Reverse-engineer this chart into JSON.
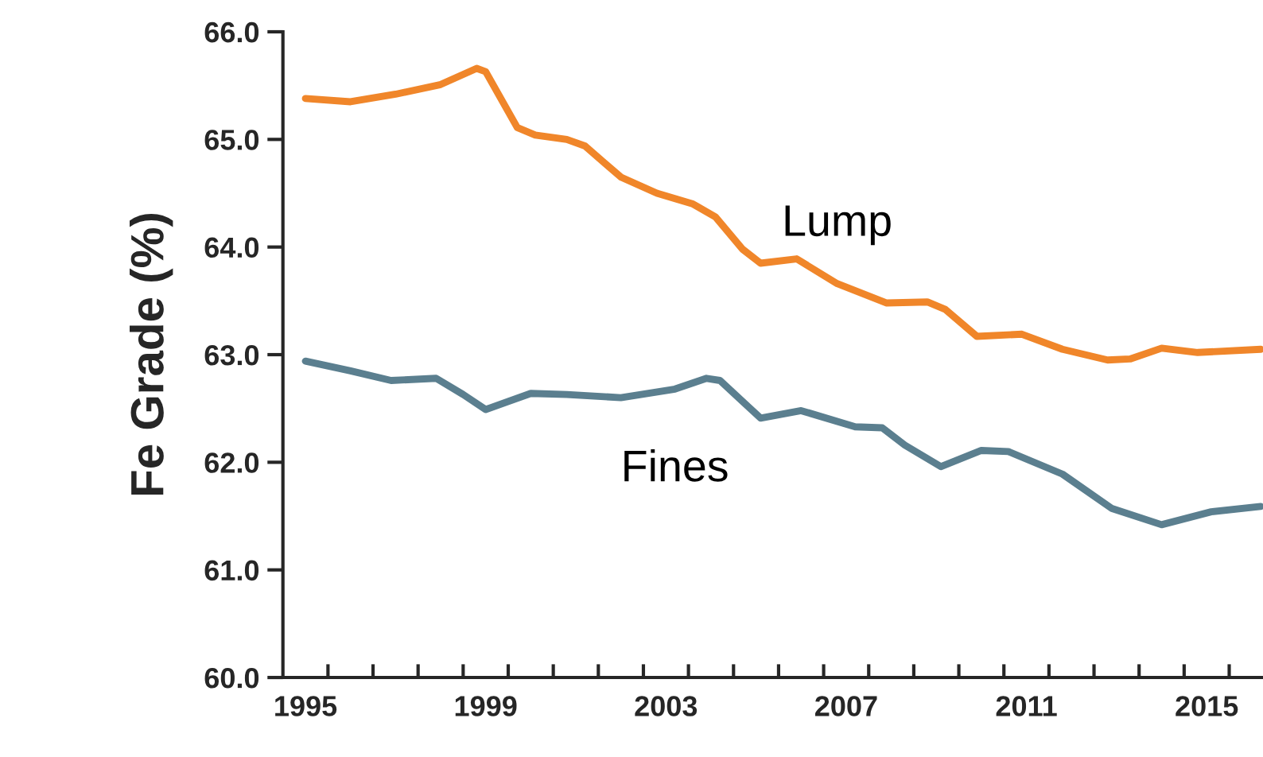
{
  "chart_data": {
    "type": "line",
    "ylabel": "Fe Grade (%)",
    "xlim": [
      1994.5,
      2016.25
    ],
    "ylim": [
      60,
      66
    ],
    "yticks": [
      {
        "value": 60,
        "label": "60.0"
      },
      {
        "value": 61,
        "label": "61.0"
      },
      {
        "value": 62,
        "label": "62.0"
      },
      {
        "value": 63,
        "label": "63.0"
      },
      {
        "value": 64,
        "label": "64.0"
      },
      {
        "value": 65,
        "label": "65.0"
      },
      {
        "value": 66,
        "label": "66.0"
      }
    ],
    "xticks": [
      1995,
      1999,
      2003,
      2007,
      2011,
      2015,
      {
        "value": 1995.5,
        "label": null
      },
      {
        "value": 1996.5,
        "label": null
      },
      {
        "value": 1997.5,
        "label": null
      },
      {
        "value": 1998.5,
        "label": null
      },
      {
        "value": 1999.5,
        "label": null
      },
      {
        "value": 2000.5,
        "label": null
      },
      {
        "value": 2001.5,
        "label": null
      },
      {
        "value": 2002.5,
        "label": null
      },
      {
        "value": 2003.5,
        "label": null
      },
      {
        "value": 2004.5,
        "label": null
      },
      {
        "value": 2005.5,
        "label": null
      },
      {
        "value": 2006.5,
        "label": null
      },
      {
        "value": 2007.5,
        "label": null
      },
      {
        "value": 2008.5,
        "label": null
      },
      {
        "value": 2009.5,
        "label": null
      },
      {
        "value": 2010.5,
        "label": null
      },
      {
        "value": 2011.5,
        "label": null
      },
      {
        "value": 2012.5,
        "label": null
      },
      {
        "value": 2013.5,
        "label": null
      },
      {
        "value": 2014.5,
        "label": null
      },
      {
        "value": 2015.5,
        "label": null
      }
    ],
    "grid": false,
    "legend": false,
    "series": [
      {
        "name": "Lump",
        "color": "#f0862a",
        "x": [
          1995.0,
          1996.0,
          1997.0,
          1998.0,
          1998.8,
          1999.0,
          1999.7,
          2000.1,
          2000.8,
          2001.2,
          2002.0,
          2002.8,
          2003.6,
          2004.1,
          2004.7,
          2005.1,
          2005.9,
          2006.8,
          2007.9,
          2008.8,
          2009.2,
          2009.9,
          2010.9,
          2011.8,
          2012.8,
          2013.3,
          2014.0,
          2014.8,
          2016.2
        ],
        "values": [
          65.38,
          65.35,
          65.42,
          65.51,
          65.66,
          65.63,
          65.11,
          65.04,
          65.0,
          64.94,
          64.65,
          64.5,
          64.4,
          64.28,
          63.98,
          63.85,
          63.89,
          63.66,
          63.48,
          63.49,
          63.42,
          63.17,
          63.19,
          63.05,
          62.95,
          62.96,
          63.06,
          63.02,
          63.05
        ]
      },
      {
        "name": "Fines",
        "color": "#5b7f8f",
        "x": [
          1995.0,
          1996.0,
          1996.9,
          1997.9,
          1998.5,
          1999.0,
          2000.0,
          2000.8,
          2002.0,
          2003.2,
          2003.9,
          2004.2,
          2005.1,
          2006.0,
          2007.2,
          2007.8,
          2008.3,
          2009.1,
          2010.0,
          2010.6,
          2011.8,
          2012.9,
          2014.0,
          2015.1,
          2016.2
        ],
        "values": [
          62.94,
          62.85,
          62.76,
          62.78,
          62.63,
          62.49,
          62.64,
          62.63,
          62.6,
          62.68,
          62.78,
          62.76,
          62.41,
          62.48,
          62.33,
          62.32,
          62.16,
          61.96,
          62.11,
          62.1,
          61.89,
          61.57,
          61.42,
          61.54,
          61.59
        ]
      }
    ]
  }
}
